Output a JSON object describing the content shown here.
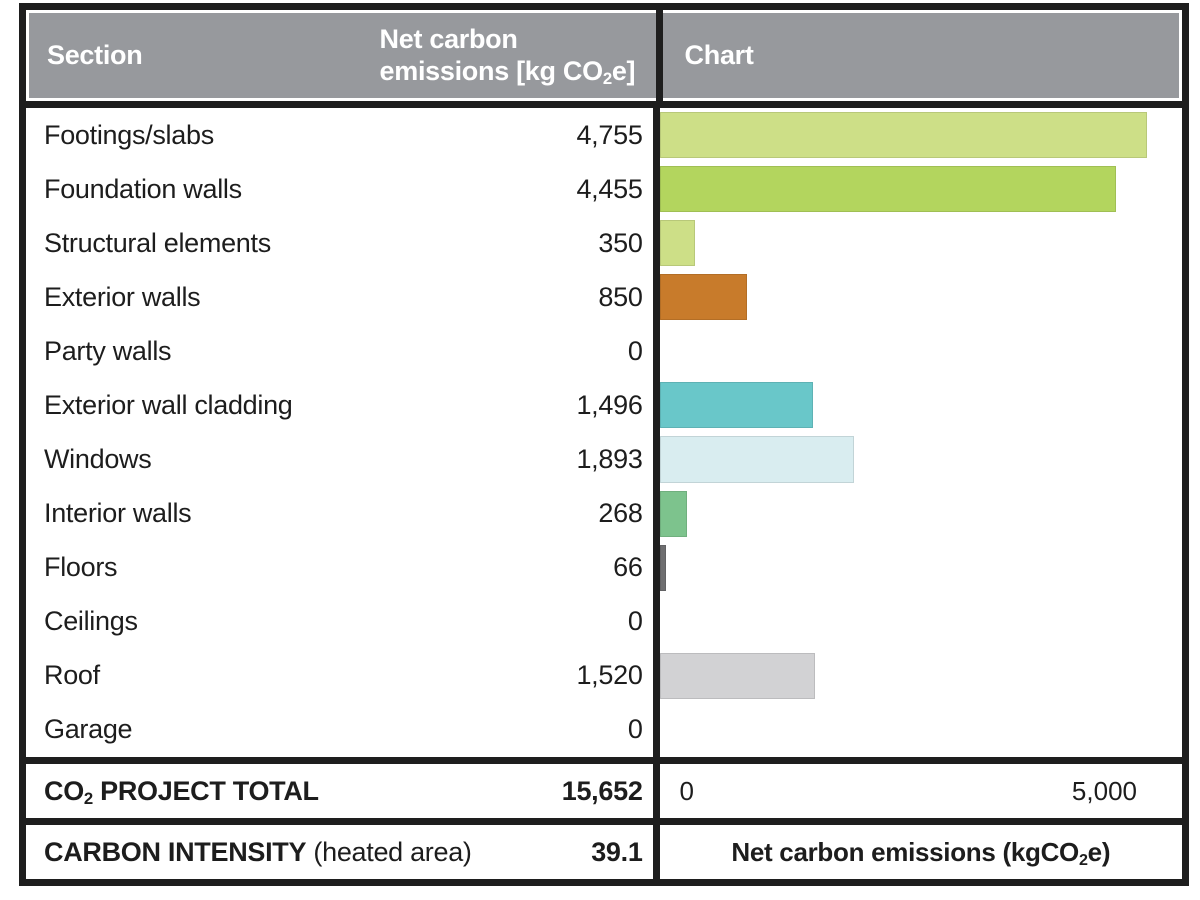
{
  "header": {
    "section": "Section",
    "emissions_line1": "Net carbon",
    "emissions_line2_pre": "emissions [kg CO",
    "emissions_sub": "2",
    "emissions_line2_post": "e]",
    "chart": "Chart"
  },
  "rows": [
    {
      "label": "Footings/slabs",
      "value": "4,755",
      "value_num": 4755,
      "color": "#cddf87"
    },
    {
      "label": "Foundation walls",
      "value": "4,455",
      "value_num": 4455,
      "color": "#b3d55e"
    },
    {
      "label": "Structural elements",
      "value": "350",
      "value_num": 350,
      "color": "#cddf87"
    },
    {
      "label": "Exterior walls",
      "value": "850",
      "value_num": 850,
      "color": "#c87b2b"
    },
    {
      "label": "Party walls",
      "value": "0",
      "value_num": 0,
      "color": null
    },
    {
      "label": "Exterior wall cladding",
      "value": "1,496",
      "value_num": 1496,
      "color": "#69c7c9"
    },
    {
      "label": "Windows",
      "value": "1,893",
      "value_num": 1893,
      "color": "#d9edf0"
    },
    {
      "label": "Interior walls",
      "value": "268",
      "value_num": 268,
      "color": "#7dc38d"
    },
    {
      "label": "Floors",
      "value": "66",
      "value_num": 66,
      "color": "#6e6e70"
    },
    {
      "label": "Ceilings",
      "value": "0",
      "value_num": 0,
      "color": null
    },
    {
      "label": "Roof",
      "value": "1,520",
      "value_num": 1520,
      "color": "#d2d2d4"
    },
    {
      "label": "Garage",
      "value": "0",
      "value_num": 0,
      "color": null
    }
  ],
  "total_row": {
    "label_pre": "CO",
    "label_sub": "2",
    "label_post": " PROJECT TOTAL",
    "value": "15,652"
  },
  "intensity_row": {
    "label_bold": "CARBON INTENSITY",
    "label_normal": " (heated area)",
    "value": "39.1"
  },
  "axis": {
    "min_label": "0",
    "max_label": "5,000",
    "max_value": 5000
  },
  "chart_footer": {
    "pre": "Net carbon emissions (kgCO",
    "sub": "2",
    "post": "e)"
  },
  "colors": {
    "header_bg": "#97999d",
    "header_text": "#ffffff",
    "border": "#1e1e1e",
    "text": "#1d1d1d"
  },
  "chart_data": {
    "type": "bar",
    "orientation": "horizontal",
    "title": "Chart",
    "xlabel": "Net carbon emissions (kgCO2e)",
    "categories": [
      "Footings/slabs",
      "Foundation walls",
      "Structural elements",
      "Exterior walls",
      "Party walls",
      "Exterior wall cladding",
      "Windows",
      "Interior walls",
      "Floors",
      "Ceilings",
      "Roof",
      "Garage"
    ],
    "values": [
      4755,
      4455,
      350,
      850,
      0,
      1496,
      1893,
      268,
      66,
      0,
      1520,
      0
    ],
    "bar_colors": [
      "#cddf87",
      "#b3d55e",
      "#cddf87",
      "#c87b2b",
      null,
      "#69c7c9",
      "#d9edf0",
      "#7dc38d",
      "#6e6e70",
      null,
      "#d2d2d4",
      null
    ],
    "xlim": [
      0,
      5000
    ],
    "x_ticks": [
      "0",
      "5,000"
    ],
    "grid": false,
    "legend": false,
    "value_unit": "kg CO2e",
    "project_total": 15652,
    "carbon_intensity": 39.1
  }
}
